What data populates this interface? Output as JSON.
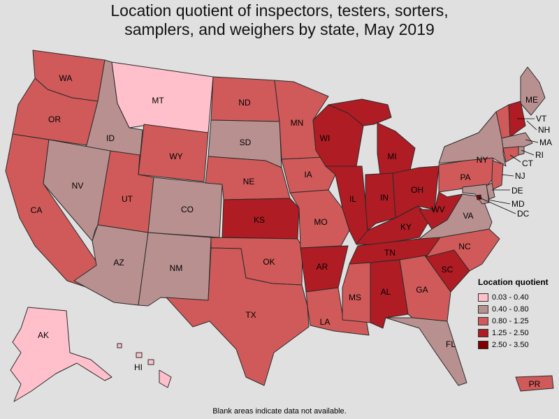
{
  "title_lines": [
    "Location quotient of inspectors, testers, sorters,",
    "samplers, and weighers by state, May 2019"
  ],
  "legend": {
    "title": "Location quotient",
    "bins": [
      {
        "label": "0.03 - 0.40",
        "color": "#ffc0cb"
      },
      {
        "label": "0.40 - 0.80",
        "color": "#b99090"
      },
      {
        "label": "0.80 - 1.25",
        "color": "#d05a5a"
      },
      {
        "label": "1.25 - 2.50",
        "color": "#b01c24"
      },
      {
        "label": "2.50 - 3.50",
        "color": "#800000"
      }
    ]
  },
  "footnote": "Blank areas indicate data not available.",
  "states": {
    "WA": 2,
    "OR": 2,
    "CA": 2,
    "ID": 1,
    "NV": 1,
    "MT": 0,
    "WY": 2,
    "UT": 2,
    "AZ": 1,
    "CO": 1,
    "NM": 1,
    "ND": 2,
    "SD": 1,
    "NE": 2,
    "KS": 3,
    "OK": 2,
    "TX": 2,
    "MN": 2,
    "IA": 2,
    "MO": 2,
    "AR": 3,
    "LA": 2,
    "WI": 3,
    "IL": 3,
    "MS": 2,
    "MI": 3,
    "IN": 3,
    "KY": 3,
    "TN": 3,
    "AL": 3,
    "OH": 3,
    "WV": 3,
    "GA": 2,
    "SC": 3,
    "FL": 1,
    "NC": 2,
    "VA": 1,
    "PA": 2,
    "NY": 1,
    "ME": 1,
    "VT": 2,
    "NH": 3,
    "MA": 1,
    "RI": 1,
    "CT": 2,
    "NJ": 2,
    "DE": 1,
    "MD": 1,
    "DC": 4,
    "AK": 0,
    "HI": 0,
    "PR": 2
  }
}
